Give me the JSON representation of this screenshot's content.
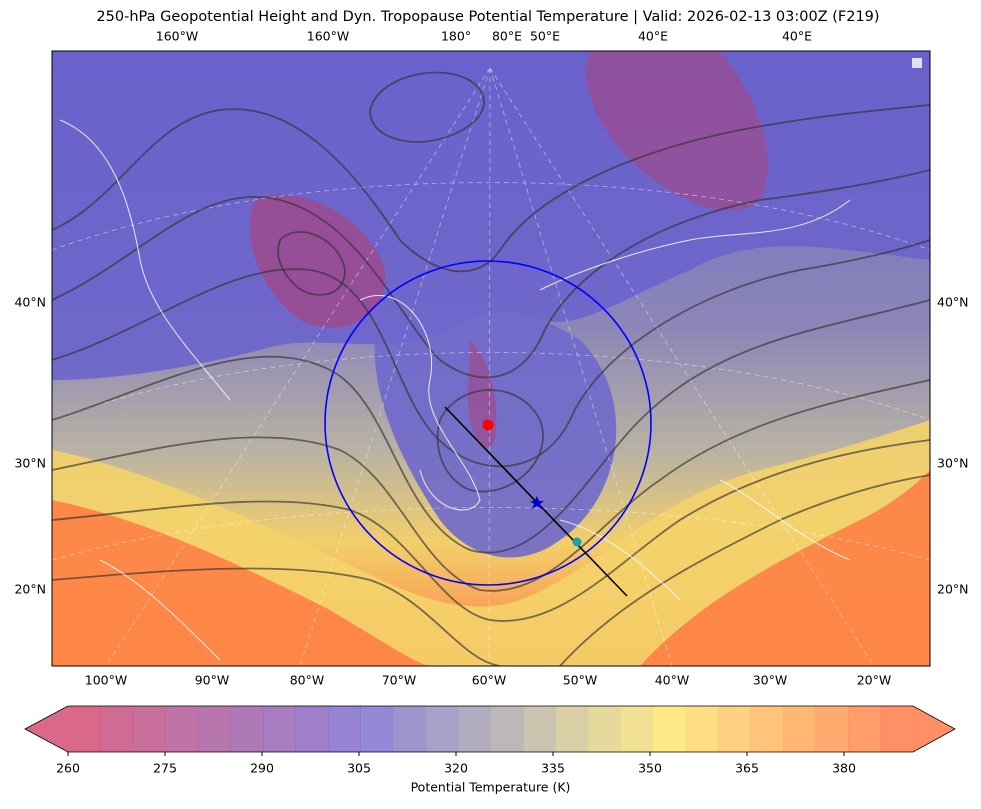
{
  "header": {
    "title": "250-hPa Geopotential Height and Dyn. Tropopause Potential Temperature   |  Valid: 2026-02-13 03:00Z (F219)"
  },
  "map": {
    "top_labels": [
      "160°W",
      "160°W",
      "180°",
      "80°E",
      "50°E",
      "40°E",
      "40°E"
    ],
    "left_labels": [
      "40°N",
      "30°N",
      "20°N"
    ],
    "right_labels": [
      "40°N",
      "30°N",
      "20°N"
    ],
    "bottom_labels": [
      "100°W",
      "90°W",
      "80°W",
      "70°W",
      "60°W",
      "50°W",
      "40°W",
      "30°W",
      "20°W"
    ]
  },
  "colorbar": {
    "ticks": [
      260,
      275,
      290,
      305,
      320,
      335,
      350,
      365,
      380
    ],
    "label": "Potential Temperature (K)"
  }
}
